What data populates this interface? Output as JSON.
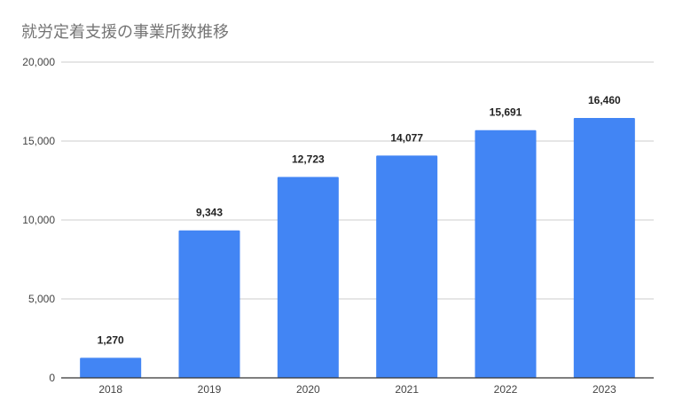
{
  "chart_data": {
    "type": "bar",
    "title": "就労定着支援の事業所数推移",
    "categories": [
      "2018",
      "2019",
      "2020",
      "2021",
      "2022",
      "2023"
    ],
    "values": [
      1270,
      9343,
      12723,
      14077,
      15691,
      16460
    ],
    "data_labels": [
      "1,270",
      "9,343",
      "12,723",
      "14,077",
      "15,691",
      "16,460"
    ],
    "y_ticks": [
      "0",
      "5,000",
      "10,000",
      "15,000",
      "20,000"
    ],
    "ylim": [
      0,
      20000
    ],
    "grid": true,
    "legend": "none",
    "bar_color": "#4285f4",
    "grid_color": "#cccccc",
    "axis_color": "#333333",
    "title_color": "#757575"
  }
}
